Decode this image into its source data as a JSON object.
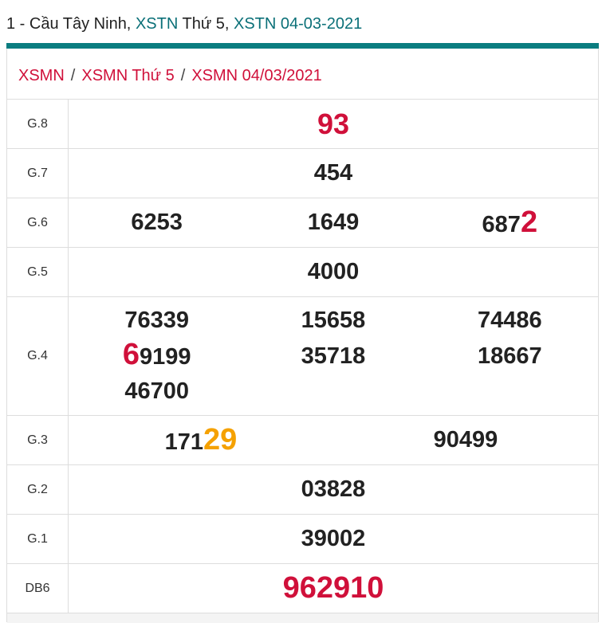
{
  "header": {
    "prefix": "1 - Cầu Tây Ninh, ",
    "link1": "XSTN",
    "mid": " Thứ 5, ",
    "link2": "XSTN 04-03-2021"
  },
  "breadcrumb": [
    "XSMN",
    "XSMN Thứ 5",
    "XSMN 04/03/2021"
  ],
  "colors": {
    "accent": "#0a7d80",
    "red": "#d0103a",
    "orange": "#f5a100"
  },
  "prizes": [
    {
      "label": "G.8",
      "values": [
        {
          "pre": "",
          "hl": "",
          "post": "93",
          "red": true
        }
      ]
    },
    {
      "label": "G.7",
      "values": [
        {
          "pre": "454",
          "hl": "",
          "post": ""
        }
      ]
    },
    {
      "label": "G.6",
      "values": [
        {
          "pre": "6253",
          "hl": "",
          "post": ""
        },
        {
          "pre": "1649",
          "hl": "",
          "post": ""
        },
        {
          "pre": "687",
          "hl": "2",
          "post": ""
        }
      ]
    },
    {
      "label": "G.5",
      "values": [
        {
          "pre": "4000",
          "hl": "",
          "post": ""
        }
      ]
    },
    {
      "label": "G.4",
      "values": [
        {
          "pre": "76339",
          "hl": "",
          "post": ""
        },
        {
          "pre": "15658",
          "hl": "",
          "post": ""
        },
        {
          "pre": "74486",
          "hl": "",
          "post": ""
        },
        {
          "pre": "",
          "hl": "6",
          "post": "9199"
        },
        {
          "pre": "35718",
          "hl": "",
          "post": ""
        },
        {
          "pre": "18667",
          "hl": "",
          "post": ""
        },
        {
          "pre": "46700",
          "hl": "",
          "post": ""
        }
      ]
    },
    {
      "label": "G.3",
      "values": [
        {
          "pre": "171",
          "hl": "29",
          "post": "",
          "orange": true
        },
        {
          "pre": "90499",
          "hl": "",
          "post": ""
        }
      ]
    },
    {
      "label": "G.2",
      "values": [
        {
          "pre": "03828",
          "hl": "",
          "post": ""
        }
      ]
    },
    {
      "label": "G.1",
      "values": [
        {
          "pre": "39002",
          "hl": "",
          "post": ""
        }
      ]
    },
    {
      "label": "DB6",
      "values": [
        {
          "pre": "",
          "hl": "",
          "post": "962910",
          "red": true,
          "special": true
        }
      ]
    }
  ]
}
